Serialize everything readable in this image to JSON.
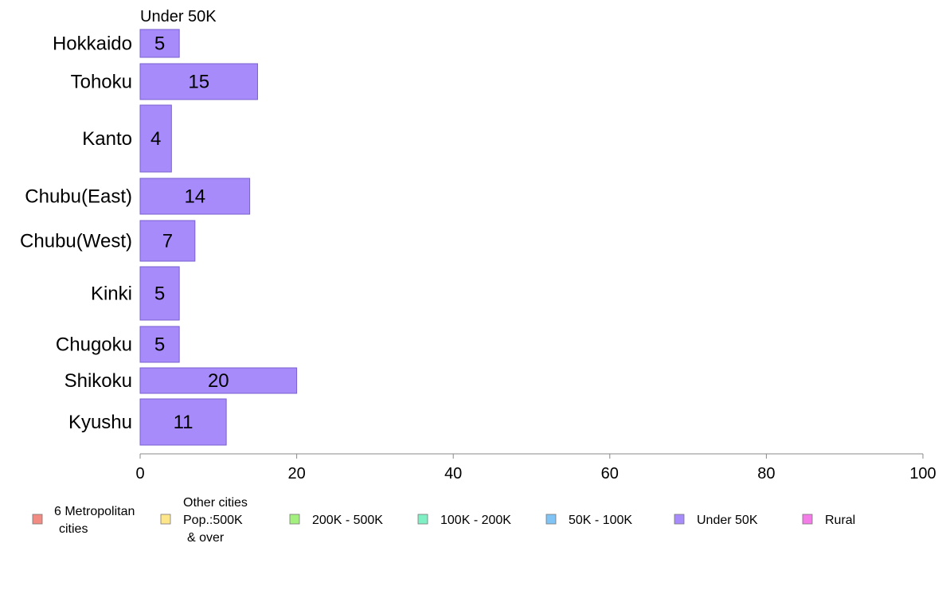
{
  "chart_data": {
    "type": "bar",
    "orientation": "horizontal",
    "title": "Under 50K",
    "categories": [
      "Hokkaido",
      "Tohoku",
      "Kanto",
      "Chubu(East)",
      "Chubu(West)",
      "Kinki",
      "Chugoku",
      "Shikoku",
      "Kyushu"
    ],
    "series": [
      {
        "name": "Under 50K",
        "color": "#a78bfa",
        "values": [
          5,
          15,
          4,
          14,
          7,
          5,
          5,
          20,
          11
        ],
        "labels": [
          "5",
          "15",
          "4",
          "14",
          "7",
          "5",
          "5",
          "20",
          "11"
        ]
      }
    ],
    "xlim": [
      0,
      100
    ],
    "xticks": [
      0,
      20,
      40,
      60,
      80,
      100
    ],
    "xtick_labels": [
      "0",
      "20",
      "40",
      "60",
      "80",
      "100"
    ],
    "grid": false,
    "legend_position": "bottom",
    "legend": [
      {
        "label": "6 Metropolitan\ncities",
        "color": "#f28b82",
        "icon": "legend-swatch"
      },
      {
        "label": "Other cities\nPop.:500K\n& over",
        "color": "#fde68a",
        "icon": "legend-swatch"
      },
      {
        "label": "200K - 500K",
        "color": "#a3f07f",
        "icon": "legend-swatch"
      },
      {
        "label": "100K - 200K",
        "color": "#7ff0c4",
        "icon": "legend-swatch"
      },
      {
        "label": "50K - 100K",
        "color": "#7fc4f5",
        "icon": "legend-swatch"
      },
      {
        "label": "Under 50K",
        "color": "#a78bfa",
        "icon": "legend-swatch"
      },
      {
        "label": "Rural",
        "color": "#f47ce8",
        "icon": "legend-swatch"
      }
    ]
  }
}
